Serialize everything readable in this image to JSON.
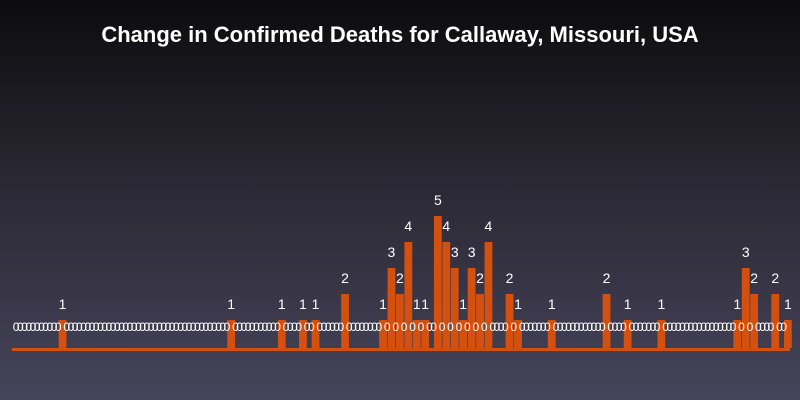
{
  "chart_data": {
    "type": "bar",
    "title": "Change in Confirmed Deaths for Callaway, Missouri, USA",
    "xlabel": "",
    "ylabel": "",
    "ylim": [
      0,
      5
    ],
    "grid": false,
    "legend": "none",
    "values": [
      0,
      0,
      0,
      0,
      0,
      0,
      0,
      0,
      0,
      0,
      0,
      1,
      0,
      0,
      0,
      0,
      0,
      0,
      0,
      0,
      0,
      0,
      0,
      0,
      0,
      0,
      0,
      0,
      0,
      0,
      0,
      0,
      0,
      0,
      0,
      0,
      0,
      0,
      0,
      0,
      0,
      0,
      0,
      0,
      0,
      0,
      0,
      0,
      0,
      0,
      0,
      1,
      0,
      0,
      0,
      0,
      0,
      0,
      0,
      0,
      0,
      0,
      0,
      1,
      0,
      0,
      0,
      0,
      1,
      0,
      0,
      1,
      0,
      0,
      0,
      0,
      0,
      0,
      2,
      0,
      0,
      0,
      0,
      0,
      0,
      0,
      0,
      1,
      0,
      3,
      0,
      2,
      0,
      4,
      0,
      1,
      0,
      1,
      0,
      0,
      5,
      0,
      4,
      0,
      3,
      0,
      1,
      0,
      3,
      0,
      2,
      0,
      4,
      0,
      0,
      0,
      0,
      2,
      0,
      1,
      0,
      0,
      0,
      0,
      0,
      0,
      0,
      1,
      0,
      0,
      0,
      0,
      0,
      0,
      0,
      0,
      0,
      0,
      0,
      0,
      2,
      0,
      0,
      0,
      0,
      1,
      0,
      0,
      0,
      0,
      0,
      0,
      0,
      1,
      0,
      0,
      0,
      0,
      0,
      0,
      0,
      0,
      0,
      0,
      0,
      0,
      0,
      0,
      0,
      0,
      0,
      1,
      0,
      3,
      0,
      2,
      0,
      0,
      0,
      0,
      2,
      0,
      0,
      1
    ],
    "colors": {
      "bar": "#d4500f",
      "baseline": "#d4500f",
      "label": "#ffffff"
    }
  }
}
